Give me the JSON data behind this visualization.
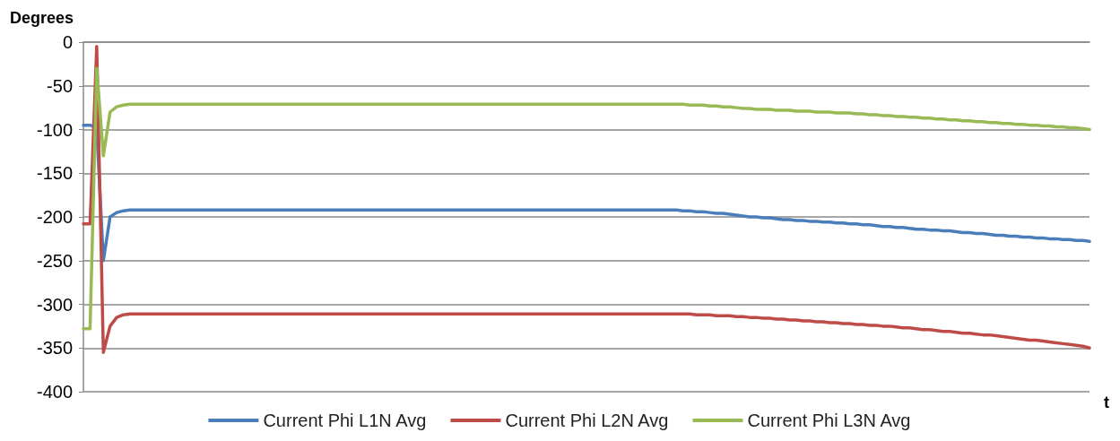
{
  "chart_data": {
    "type": "line",
    "ylabel": "Degrees",
    "xlabel": "t",
    "categories": [
      null,
      null,
      null,
      null,
      null,
      null,
      null,
      null,
      null,
      null,
      null,
      null,
      null,
      null,
      null,
      null,
      null,
      null,
      null,
      null,
      null,
      null,
      null,
      null,
      null,
      null,
      null,
      null,
      null,
      null,
      null,
      null,
      null,
      null,
      null,
      null,
      null,
      null,
      null,
      null,
      null,
      null,
      null,
      null,
      null,
      null,
      null,
      null,
      null,
      null,
      null,
      null,
      null,
      null,
      null,
      null,
      null,
      null,
      null,
      null,
      null,
      null,
      null,
      null,
      null,
      null,
      null,
      null,
      null,
      null,
      null,
      null,
      null,
      null,
      null,
      null,
      null,
      null,
      null,
      null,
      null,
      null,
      null,
      null,
      null,
      null,
      null,
      null,
      null,
      null,
      null,
      null,
      null,
      null,
      null,
      null,
      null,
      null,
      null,
      null,
      null,
      null,
      null,
      null,
      null,
      null,
      null,
      null,
      null,
      null,
      null,
      null,
      null,
      null,
      null,
      null,
      null,
      null,
      null,
      null,
      null,
      null,
      null,
      null,
      null,
      null,
      null,
      null,
      null,
      null,
      null,
      null,
      null,
      null,
      null,
      null,
      null,
      null,
      null,
      null,
      null,
      null,
      null,
      null,
      null,
      null,
      null,
      null,
      null,
      null,
      null,
      null
    ],
    "series": [
      {
        "name": "Current Phi L1N Avg",
        "color": "#4a7ebb",
        "values": [
          -95,
          -95,
          -98,
          -250,
          -200,
          -195,
          -193,
          -192,
          -192,
          -192,
          -192,
          -192,
          -192,
          -192,
          -192,
          -192,
          -192,
          -192,
          -192,
          -192,
          -192,
          -192,
          -192,
          -192,
          -192,
          -192,
          -192,
          -192,
          -192,
          -192,
          -192,
          -192,
          -192,
          -192,
          -192,
          -192,
          -192,
          -192,
          -192,
          -192,
          -192,
          -192,
          -192,
          -192,
          -192,
          -192,
          -192,
          -192,
          -192,
          -192,
          -192,
          -192,
          -192,
          -192,
          -192,
          -192,
          -192,
          -192,
          -192,
          -192,
          -192,
          -192,
          -192,
          -192,
          -192,
          -192,
          -192,
          -192,
          -192,
          -192,
          -192,
          -192,
          -192,
          -192,
          -192,
          -192,
          -192,
          -192,
          -192,
          -192,
          -192,
          -192,
          -192,
          -192,
          -192,
          -192,
          -192,
          -192,
          -192,
          -192,
          -193,
          -193,
          -194,
          -194,
          -195,
          -196,
          -196,
          -197,
          -198,
          -199,
          -200,
          -200,
          -201,
          -201,
          -202,
          -203,
          -203,
          -204,
          -204,
          -205,
          -205,
          -206,
          -206,
          -207,
          -207,
          -208,
          -208,
          -209,
          -209,
          -210,
          -211,
          -211,
          -212,
          -212,
          -213,
          -214,
          -214,
          -215,
          -215,
          -216,
          -216,
          -217,
          -218,
          -218,
          -219,
          -219,
          -220,
          -221,
          -221,
          -222,
          -222,
          -223,
          -223,
          -224,
          -224,
          -225,
          -225,
          -226,
          -226,
          -227,
          -227,
          -228
        ]
      },
      {
        "name": "Current Phi L2N Avg",
        "color": "#be4b48",
        "values": [
          -208,
          -208,
          -5,
          -355,
          -325,
          -315,
          -312,
          -311,
          -311,
          -311,
          -311,
          -311,
          -311,
          -311,
          -311,
          -311,
          -311,
          -311,
          -311,
          -311,
          -311,
          -311,
          -311,
          -311,
          -311,
          -311,
          -311,
          -311,
          -311,
          -311,
          -311,
          -311,
          -311,
          -311,
          -311,
          -311,
          -311,
          -311,
          -311,
          -311,
          -311,
          -311,
          -311,
          -311,
          -311,
          -311,
          -311,
          -311,
          -311,
          -311,
          -311,
          -311,
          -311,
          -311,
          -311,
          -311,
          -311,
          -311,
          -311,
          -311,
          -311,
          -311,
          -311,
          -311,
          -311,
          -311,
          -311,
          -311,
          -311,
          -311,
          -311,
          -311,
          -311,
          -311,
          -311,
          -311,
          -311,
          -311,
          -311,
          -311,
          -311,
          -311,
          -311,
          -311,
          -311,
          -311,
          -311,
          -311,
          -311,
          -311,
          -311,
          -311,
          -312,
          -312,
          -312,
          -313,
          -313,
          -313,
          -314,
          -314,
          -315,
          -315,
          -316,
          -316,
          -317,
          -317,
          -318,
          -318,
          -319,
          -319,
          -320,
          -320,
          -321,
          -321,
          -322,
          -322,
          -323,
          -323,
          -324,
          -324,
          -325,
          -325,
          -326,
          -327,
          -327,
          -328,
          -329,
          -329,
          -330,
          -331,
          -331,
          -332,
          -333,
          -333,
          -334,
          -335,
          -335,
          -336,
          -337,
          -338,
          -339,
          -340,
          -341,
          -341,
          -342,
          -343,
          -344,
          -345,
          -346,
          -347,
          -348,
          -350
        ]
      },
      {
        "name": "Current Phi L3N Avg",
        "color": "#98b954",
        "values": [
          -328,
          -328,
          -30,
          -130,
          -80,
          -74,
          -72,
          -71,
          -71,
          -71,
          -71,
          -71,
          -71,
          -71,
          -71,
          -71,
          -71,
          -71,
          -71,
          -71,
          -71,
          -71,
          -71,
          -71,
          -71,
          -71,
          -71,
          -71,
          -71,
          -71,
          -71,
          -71,
          -71,
          -71,
          -71,
          -71,
          -71,
          -71,
          -71,
          -71,
          -71,
          -71,
          -71,
          -71,
          -71,
          -71,
          -71,
          -71,
          -71,
          -71,
          -71,
          -71,
          -71,
          -71,
          -71,
          -71,
          -71,
          -71,
          -71,
          -71,
          -71,
          -71,
          -71,
          -71,
          -71,
          -71,
          -71,
          -71,
          -71,
          -71,
          -71,
          -71,
          -71,
          -71,
          -71,
          -71,
          -71,
          -71,
          -71,
          -71,
          -71,
          -71,
          -71,
          -71,
          -71,
          -71,
          -71,
          -71,
          -71,
          -71,
          -71,
          -72,
          -72,
          -72,
          -73,
          -73,
          -74,
          -74,
          -75,
          -76,
          -76,
          -77,
          -77,
          -77,
          -78,
          -78,
          -78,
          -79,
          -79,
          -79,
          -80,
          -80,
          -80,
          -81,
          -81,
          -81,
          -82,
          -82,
          -83,
          -83,
          -84,
          -84,
          -85,
          -85,
          -86,
          -86,
          -87,
          -87,
          -88,
          -88,
          -89,
          -89,
          -90,
          -90,
          -91,
          -91,
          -92,
          -92,
          -93,
          -93,
          -94,
          -94,
          -95,
          -95,
          -96,
          -96,
          -97,
          -97,
          -98,
          -98,
          -99,
          -100
        ]
      }
    ],
    "ylim": [
      -400,
      0
    ],
    "yticks": [
      -400,
      -350,
      -300,
      -250,
      -200,
      -150,
      -100,
      -50,
      0
    ],
    "grid": "y",
    "legend": "bottom",
    "tick_labels": "y",
    "line_style": "solid"
  }
}
